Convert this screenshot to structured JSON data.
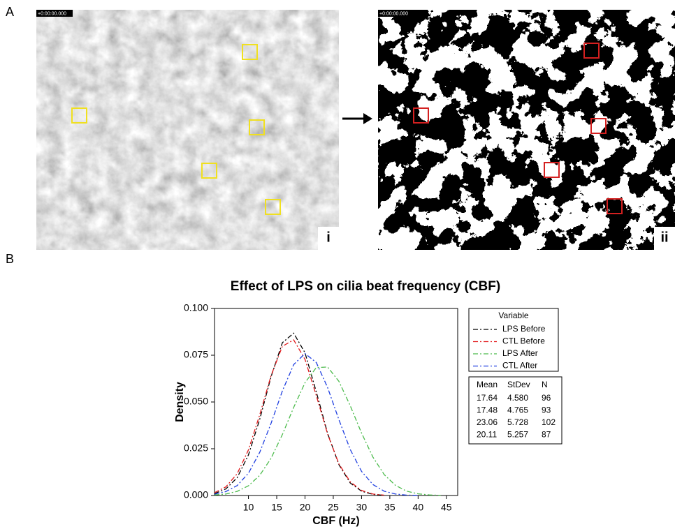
{
  "panel_a": {
    "label": "A",
    "left_label": "i",
    "right_label": "ii",
    "timestamp_left": "+0:00:00.000",
    "timestamp_right": "+0:00:00.000"
  },
  "panel_b": {
    "label": "B"
  },
  "chart_data": {
    "type": "line",
    "title": "Effect of LPS on cilia beat frequency (CBF)",
    "x_label": "CBF (Hz)",
    "y_label": "Density",
    "legend_title": "Variable",
    "x": [
      4,
      6,
      8,
      10,
      12,
      14,
      16,
      18,
      20,
      22,
      24,
      26,
      28,
      30,
      32,
      34,
      36,
      38,
      40,
      42,
      44
    ],
    "series": [
      {
        "name": "LPS Before",
        "color": "#000000",
        "values": [
          0.001,
          0.0035,
          0.0095,
          0.0217,
          0.0408,
          0.0635,
          0.0817,
          0.0868,
          0.0763,
          0.0554,
          0.0332,
          0.0165,
          0.0067,
          0.0023,
          0.0006,
          0.0001,
          null,
          null,
          null,
          null,
          null
        ]
      },
      {
        "name": "CTL Before",
        "color": "#e31a1c",
        "values": [
          0.0015,
          0.0046,
          0.0116,
          0.0244,
          0.0432,
          0.0641,
          0.0798,
          0.0832,
          0.0728,
          0.0534,
          0.0328,
          0.0169,
          0.0073,
          0.0027,
          0.0008,
          0.0002,
          null,
          null,
          null,
          null,
          null
        ]
      },
      {
        "name": "LPS After",
        "color": "#4cbb4c",
        "values": [
          0.0003,
          0.0008,
          0.0022,
          0.0052,
          0.0108,
          0.0199,
          0.0326,
          0.0471,
          0.0603,
          0.0684,
          0.0687,
          0.061,
          0.048,
          0.0334,
          0.0206,
          0.0112,
          0.0054,
          0.0023,
          0.0009,
          0.0003,
          0.0001
        ]
      },
      {
        "name": "CTL After",
        "color": "#1f3fe0",
        "values": [
          0.0007,
          0.0021,
          0.0053,
          0.0119,
          0.0231,
          0.0386,
          0.0559,
          0.07,
          0.0759,
          0.0711,
          0.0577,
          0.0405,
          0.0246,
          0.0129,
          0.0059,
          0.0023,
          0.0008,
          0.0002,
          0.0001,
          null,
          null
        ]
      }
    ],
    "xlim": [
      4,
      47
    ],
    "ylim": [
      0,
      0.1
    ],
    "xticks": [
      10,
      15,
      20,
      25,
      30,
      35,
      40,
      45
    ],
    "yticks": [
      {
        "value": 0,
        "label": "0.000"
      },
      {
        "value": 0.025,
        "label": "0.025"
      },
      {
        "value": 0.05,
        "label": "0.050"
      },
      {
        "value": 0.075,
        "label": "0.075"
      },
      {
        "value": 0.1,
        "label": "0.100"
      }
    ],
    "stats_table": {
      "header": [
        "Mean",
        "StDev",
        "N"
      ],
      "rows": [
        [
          "17.64",
          "4.580",
          "96"
        ],
        [
          "17.48",
          "4.765",
          "93"
        ],
        [
          "23.06",
          "5.728",
          "102"
        ],
        [
          "20.11",
          "5.257",
          "87"
        ]
      ]
    }
  }
}
